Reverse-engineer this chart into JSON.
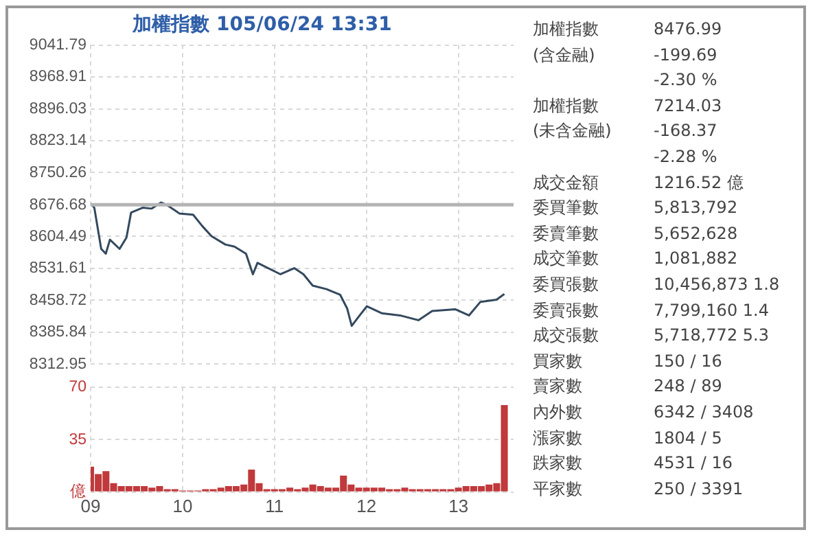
{
  "chart_data": [
    {
      "type": "line",
      "title": "加權指數 105/06/24 13:31",
      "grid": true,
      "tick_labels": "y",
      "xlim": [
        9,
        13.6
      ],
      "xticks": [
        9,
        10,
        11,
        12,
        13
      ],
      "ylim": [
        8312.95,
        9041.79
      ],
      "yticks": [
        8312.95,
        8385.84,
        8458.72,
        8531.61,
        8604.49,
        8676.68,
        8750.26,
        8823.14,
        8896.03,
        8968.91,
        9041.79
      ],
      "ref_lines": [
        {
          "axis": "y",
          "value": 8676.68,
          "color": "#b4b4b4"
        }
      ],
      "series": [
        {
          "color": "#34495e",
          "x": [
            9.0,
            9.04,
            9.115,
            9.165,
            9.21,
            9.315,
            9.39,
            9.44,
            9.565,
            9.665,
            9.765,
            9.84,
            9.965,
            10.115,
            10.215,
            10.315,
            10.465,
            10.565,
            10.69,
            10.765,
            10.815,
            11.065,
            11.215,
            11.315,
            11.415,
            11.565,
            11.715,
            11.79,
            11.84,
            11.915,
            12.005,
            12.165,
            12.365,
            12.565,
            12.715,
            12.965,
            13.115,
            13.24,
            13.415,
            13.5
          ],
          "values": [
            8680,
            8670,
            8576,
            8565,
            8597,
            8576,
            8602,
            8659,
            8670,
            8668,
            8682,
            8675,
            8657,
            8654,
            8628,
            8605,
            8586,
            8581,
            8565,
            8518,
            8544,
            8518,
            8532,
            8518,
            8492,
            8484,
            8471,
            8440,
            8400,
            8421,
            8445,
            8429,
            8424,
            8413,
            8434,
            8438,
            8424,
            8455,
            8460,
            8473
          ]
        }
      ]
    },
    {
      "type": "bar",
      "grid": true,
      "xlim": [
        9,
        13.6
      ],
      "xticks": [
        {
          "value": 9,
          "label": "09"
        },
        {
          "value": 10,
          "label": "10"
        },
        {
          "value": 11,
          "label": "11"
        },
        {
          "value": 12,
          "label": "12"
        },
        {
          "value": 13,
          "label": "13"
        }
      ],
      "ylim": [
        0,
        70
      ],
      "yticks": [
        {
          "value": 0,
          "label": "億"
        },
        35,
        70
      ],
      "series": [
        {
          "color": "#c0393b",
          "x": [
            9.0,
            9.0833,
            9.1667,
            9.25,
            9.3333,
            9.4167,
            9.5,
            9.5833,
            9.6667,
            9.75,
            9.8333,
            9.9167,
            10.0,
            10.0833,
            10.1667,
            10.25,
            10.3333,
            10.4167,
            10.5,
            10.5833,
            10.6667,
            10.75,
            10.8333,
            10.9167,
            11.0,
            11.0833,
            11.1667,
            11.25,
            11.3333,
            11.4167,
            11.5,
            11.5833,
            11.6667,
            11.75,
            11.8333,
            11.9167,
            12.0,
            12.0833,
            12.1667,
            12.25,
            12.3333,
            12.4167,
            12.5,
            12.5833,
            12.6667,
            12.75,
            12.8333,
            12.9167,
            13.0,
            13.0833,
            13.1667,
            13.25,
            13.3333,
            13.4167,
            13.5
          ],
          "values": [
            17,
            12,
            14,
            6,
            4,
            4,
            4,
            4,
            3,
            4,
            2,
            2,
            1,
            1,
            1,
            2,
            2,
            3,
            4,
            4,
            5,
            15,
            6,
            2,
            2,
            2,
            3,
            2,
            3,
            5,
            4,
            3,
            3,
            11,
            5,
            3,
            3,
            3,
            3,
            2,
            2,
            3,
            2,
            2,
            2,
            2,
            2,
            2,
            3,
            4,
            4,
            4,
            5,
            6,
            58
          ]
        }
      ]
    },
    {
      "type": "other",
      "annotations": [
        "加權指數\t8476.99",
        "(含金融)\t-199.69",
        "\t-2.30 %",
        "加權指數\t7214.03",
        "(未含金融)\t-168.37",
        "\t-2.28 %",
        "成交金額\t1216.52 億",
        "委買筆數\t5,813,792",
        "委賣筆數\t5,652,628",
        "成交筆數\t1,081,882",
        "委買張數\t10,456,873 1.8",
        "委賣張數\t7,799,160 1.4",
        "成交張數\t5,718,772 5.3",
        "買家數\t150 / 16",
        "賣家數\t248 / 89",
        "內外數\t6342 / 3408",
        "漲家數\t1804 / 5",
        "跌家數\t4531 / 16",
        "平家數\t250 / 3391"
      ]
    }
  ]
}
